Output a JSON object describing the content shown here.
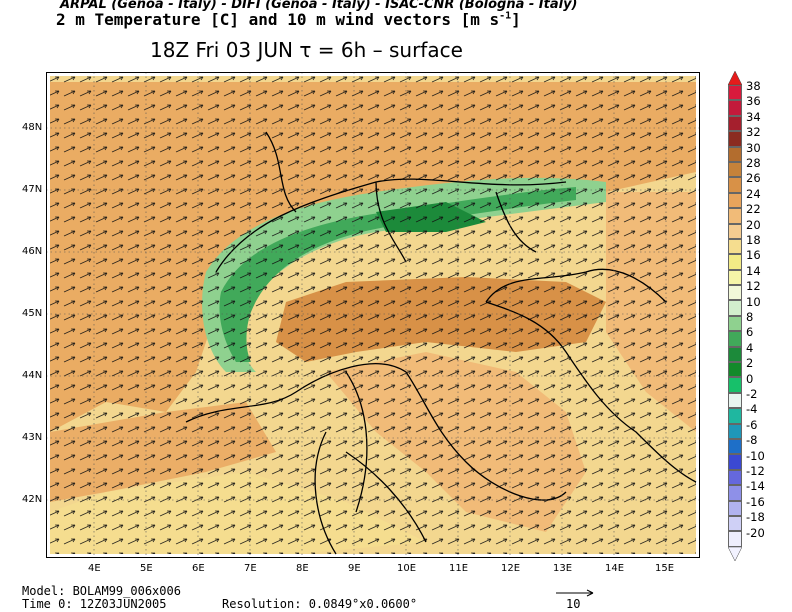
{
  "header": {
    "line1": "ARPAL (Genoa - Italy)  -  DIFI (Genoa - Italy)  -  ISAC-CNR (Bologna - Italy)",
    "line2": "2 m Temperature [C] and 10 m wind vectors [m s",
    "line2_sup": "-1",
    "line2_end": "]",
    "title": "18Z Fri 03 JUN  τ = 6h  –  surface"
  },
  "axes": {
    "lat_labels": [
      "48N",
      "47N",
      "46N",
      "45N",
      "44N",
      "43N",
      "42N"
    ],
    "lon_labels": [
      "4E",
      "5E",
      "6E",
      "7E",
      "8E",
      "9E",
      "10E",
      "11E",
      "12E",
      "13E",
      "14E",
      "15E"
    ]
  },
  "colorbar": {
    "labels": [
      "38",
      "36",
      "34",
      "32",
      "30",
      "28",
      "26",
      "24",
      "22",
      "20",
      "18",
      "16",
      "14",
      "12",
      "10",
      "8",
      "6",
      "4",
      "2",
      "0",
      "-2",
      "-4",
      "-6",
      "-8",
      "-10",
      "-12",
      "-14",
      "-16",
      "-18",
      "-20"
    ],
    "colors": [
      "#d81a3c",
      "#c31a3b",
      "#a51f2d",
      "#8b2b20",
      "#b36d2e",
      "#c5823a",
      "#d89147",
      "#e8a45c",
      "#f1bb78",
      "#f5cc91",
      "#f5dd8f",
      "#f3eb86",
      "#f6f5a8",
      "#f2f8d9",
      "#d3eecd",
      "#8fd18f",
      "#41a95a",
      "#1c8a3a",
      "#138a2a",
      "#17c06a",
      "#e8f5f0",
      "#1fb7a0",
      "#1f97b8",
      "#1e6fc8",
      "#3b49d2",
      "#6568dd",
      "#8e90e8",
      "#b1b3ef",
      "#cfd0f6",
      "#eeeefc"
    ],
    "top_arrow": "#e51b1b",
    "bottom_arrow": "#f2f2ff"
  },
  "footer": {
    "model": "Model: BOLAM99_006x006",
    "time": "Time 0: 12Z03JUN2005",
    "resolution": "Resolution: 0.0849°x0.0600°",
    "ref_vector": "10"
  }
}
